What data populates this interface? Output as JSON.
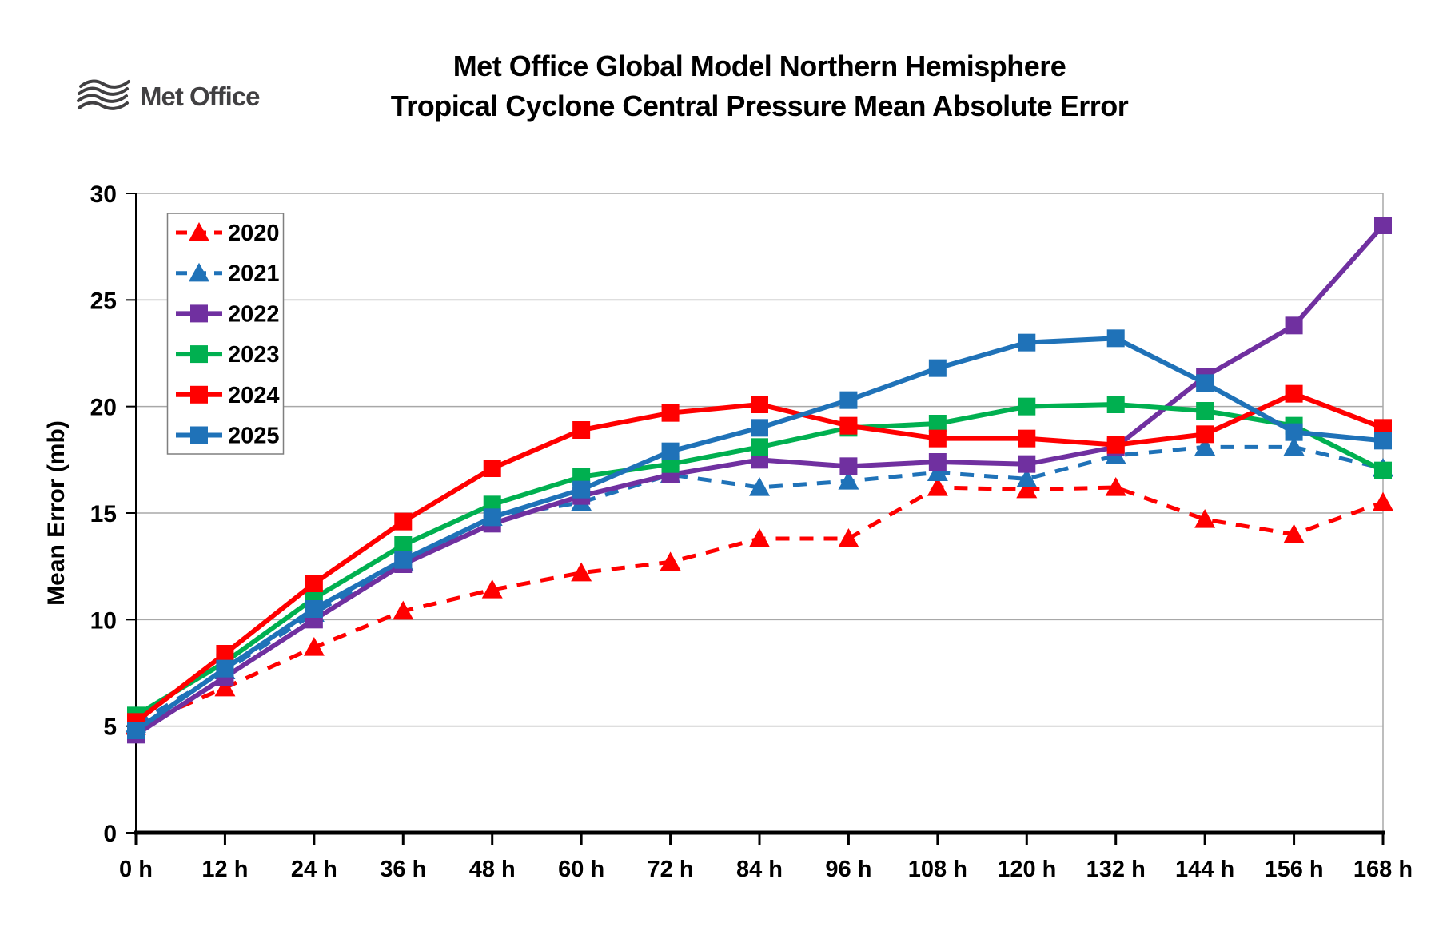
{
  "logo": {
    "text": "Met Office"
  },
  "title": {
    "line1": "Met Office Global Model Northern Hemisphere",
    "line2": "Tropical Cyclone Central Pressure Mean Absolute Error"
  },
  "chart_data": {
    "type": "line",
    "title": "Met Office Global Model Northern Hemisphere Tropical Cyclone Central Pressure Mean Absolute Error",
    "xlabel": "",
    "ylabel": "Mean Error (mb)",
    "x_hours": [
      0,
      12,
      24,
      36,
      48,
      60,
      72,
      84,
      96,
      108,
      120,
      132,
      144,
      156,
      168
    ],
    "x_tick_labels": [
      "0 h",
      "12 h",
      "24 h",
      "36 h",
      "48 h",
      "60 h",
      "72 h",
      "84 h",
      "96 h",
      "108 h",
      "120 h",
      "132 h",
      "144 h",
      "156 h",
      "168 h"
    ],
    "ylim": [
      0,
      30
    ],
    "ytick_step": 5,
    "grid": "horizontal",
    "legend_position": "upper-left-inside",
    "colors": {
      "red": "#FF0000",
      "blue": "#1F72B8",
      "purple": "#7030A0",
      "green": "#00B050",
      "gridline": "#A8A8A8",
      "axis": "#000000",
      "legend_border": "#7F7F7F"
    },
    "series": [
      {
        "name": "2020",
        "color": "#FF0000",
        "style": "dashed",
        "marker": "triangle",
        "values": [
          5.0,
          6.8,
          8.7,
          10.4,
          11.4,
          12.2,
          12.7,
          13.8,
          13.8,
          16.2,
          16.1,
          16.2,
          14.7,
          14.0,
          15.5
        ]
      },
      {
        "name": "2021",
        "color": "#1F72B8",
        "style": "dashed",
        "marker": "triangle",
        "values": [
          5.1,
          7.6,
          10.3,
          12.7,
          14.8,
          15.5,
          16.8,
          16.2,
          16.5,
          16.9,
          16.6,
          17.7,
          18.1,
          18.1,
          17.1
        ]
      },
      {
        "name": "2022",
        "color": "#7030A0",
        "style": "solid",
        "marker": "square",
        "values": [
          4.6,
          7.3,
          10.0,
          12.6,
          14.5,
          15.8,
          16.8,
          17.5,
          17.2,
          17.4,
          17.3,
          18.1,
          21.4,
          23.8,
          28.5
        ]
      },
      {
        "name": "2023",
        "color": "#00B050",
        "style": "solid",
        "marker": "square",
        "values": [
          5.5,
          8.0,
          11.0,
          13.5,
          15.4,
          16.7,
          17.3,
          18.1,
          19.0,
          19.2,
          20.0,
          20.1,
          19.8,
          19.1,
          17.0
        ]
      },
      {
        "name": "2024",
        "color": "#FF0000",
        "style": "solid",
        "marker": "square",
        "values": [
          5.2,
          8.4,
          11.7,
          14.6,
          17.1,
          18.9,
          19.7,
          20.1,
          19.1,
          18.5,
          18.5,
          18.2,
          18.7,
          20.6,
          19.0
        ]
      },
      {
        "name": "2025",
        "color": "#1F72B8",
        "style": "solid",
        "marker": "square",
        "values": [
          4.8,
          7.7,
          10.5,
          12.8,
          14.8,
          16.1,
          17.9,
          19.0,
          20.3,
          21.8,
          23.0,
          23.2,
          21.1,
          18.8,
          18.4
        ]
      }
    ]
  }
}
